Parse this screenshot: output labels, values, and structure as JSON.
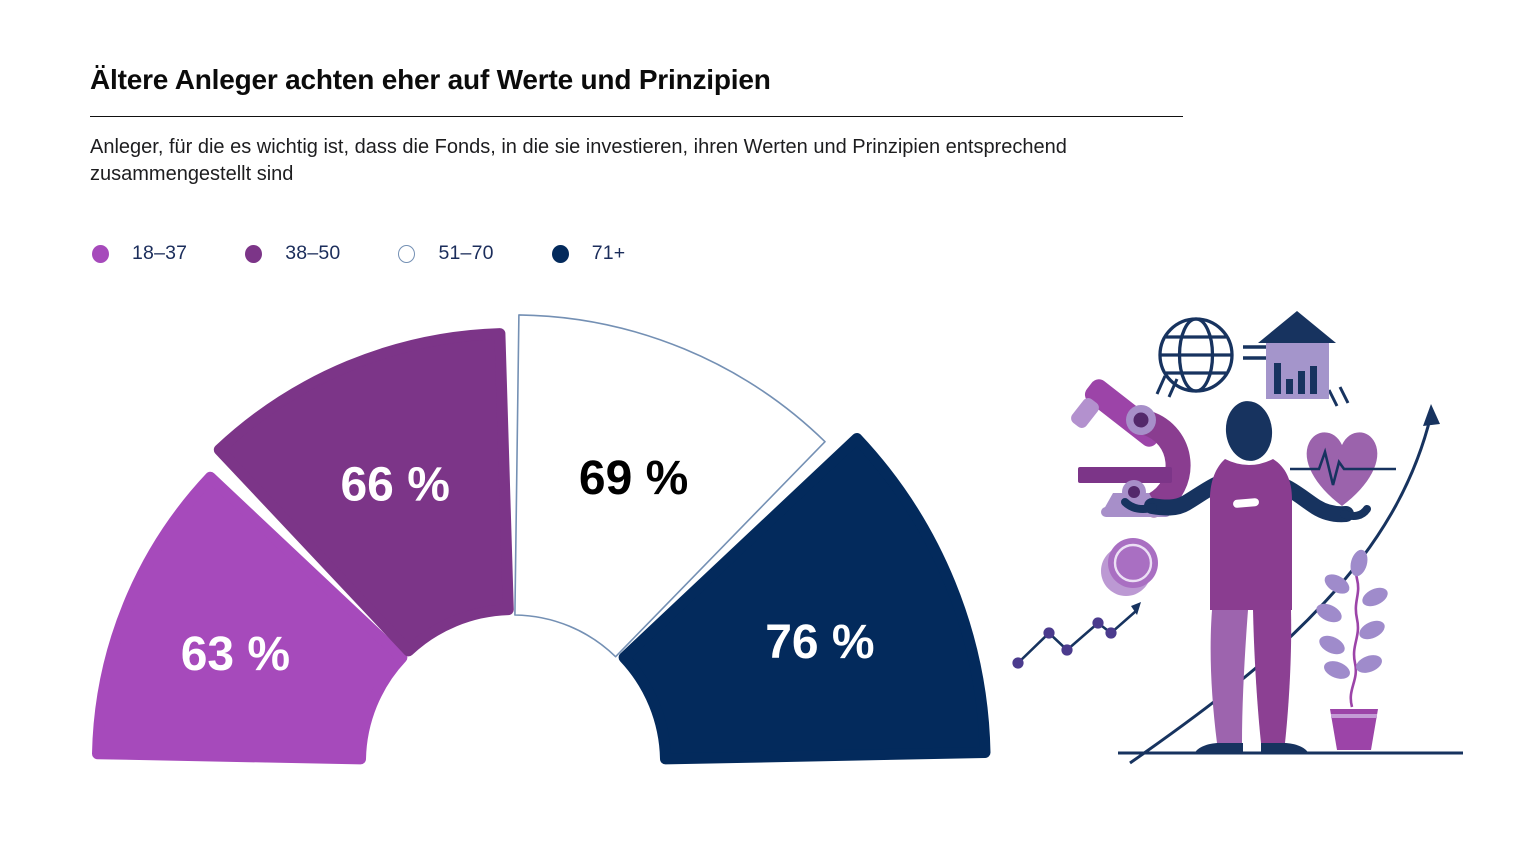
{
  "header": {
    "title": "Ältere Anleger achten eher auf Werte und Prinzipien",
    "subtitle": "Anleger, für die es wichtig ist, dass die Fonds, in die sie investieren, ihren Werten und Prinzipien entsprechend zusammengestellt sind"
  },
  "colors": {
    "age_18_37": "#a64abb",
    "age_38_50": "#7c3588",
    "age_51_70": "#ffffff",
    "age_51_70_outline": "#7490b4",
    "age_71_plus": "#032a5c",
    "legend_text": "#1b2d5b"
  },
  "chart_data": {
    "type": "gauge-donut",
    "title": "Ältere Anleger achten eher auf Werte und Prinzipien",
    "subtitle": "Anleger, für die es wichtig ist, dass die Fonds, in die sie investieren, ihren Werten und Prinzipien entsprechend zusammengestellt sind",
    "unit": "%",
    "categories": [
      "18–37",
      "38–50",
      "51–70",
      "71+"
    ],
    "values": [
      63,
      66,
      69,
      76
    ],
    "series": [
      {
        "label": "18–37",
        "value": 63,
        "display": "63 %",
        "color": "#a64abb",
        "text_color": "#ffffff"
      },
      {
        "label": "38–50",
        "value": 66,
        "display": "66 %",
        "color": "#7c3588",
        "text_color": "#ffffff"
      },
      {
        "label": "51–70",
        "value": 69,
        "display": "69 %",
        "color": "#ffffff",
        "stroke": "#7490b4",
        "text_color": "#000000"
      },
      {
        "label": "71+",
        "value": 76,
        "display": "76 %",
        "color": "#032a5c",
        "text_color": "#ffffff"
      }
    ],
    "legend_position": "top-left",
    "layout": {
      "start_angle": 180,
      "end_angle": 0,
      "center": [
        433,
        462
      ],
      "inner_radius": 147,
      "radius_per_percent": 4.35
    }
  }
}
